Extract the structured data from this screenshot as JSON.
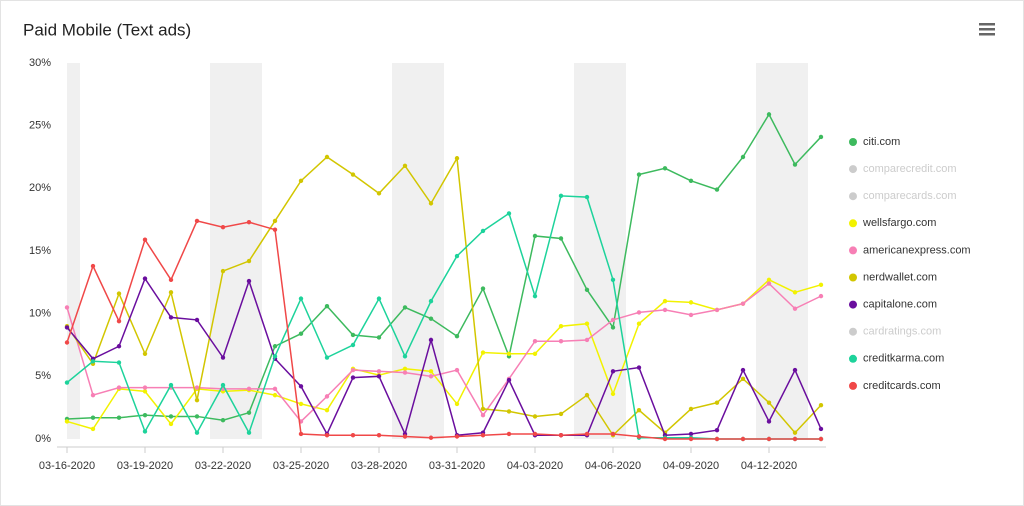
{
  "chart_data": {
    "type": "line",
    "title": "Paid Mobile (Text ads)",
    "categories": [
      "03-16-2020",
      null,
      null,
      "03-19-2020",
      null,
      null,
      "03-22-2020",
      null,
      null,
      "03-25-2020",
      null,
      null,
      "03-28-2020",
      null,
      null,
      "03-31-2020",
      null,
      null,
      "04-03-2020",
      null,
      null,
      "04-06-2020",
      null,
      null,
      "04-09-2020",
      null,
      null,
      "04-12-2020",
      null,
      null
    ],
    "ylim": [
      0,
      30
    ],
    "yticks": [
      {
        "value": 0,
        "label": "0%"
      },
      {
        "value": 5,
        "label": "5%"
      },
      {
        "value": 10,
        "label": "10%"
      },
      {
        "value": 15,
        "label": "15%"
      },
      {
        "value": 20,
        "label": "20%"
      },
      {
        "value": 25,
        "label": "25%"
      },
      {
        "value": 30,
        "label": "30%"
      }
    ],
    "legend": "right",
    "series": [
      {
        "name": "citi.com",
        "color": "#3dba5e",
        "values": [
          1.6,
          1.7,
          1.7,
          1.9,
          1.8,
          1.8,
          1.5,
          2.1,
          7.4,
          8.4,
          10.6,
          8.3,
          8.1,
          10.5,
          9.6,
          8.2,
          12.0,
          6.6,
          16.2,
          16.0,
          11.9,
          8.9,
          21.1,
          21.6,
          20.6,
          19.9,
          22.5,
          25.9,
          21.9,
          24.1
        ]
      },
      {
        "name": "comparecredit.com",
        "color": "#5b8db0",
        "visible": false
      },
      {
        "name": "comparecards.com",
        "color": "#f5a623",
        "visible": false
      },
      {
        "name": "wellsfargo.com",
        "color": "#f2f200",
        "values": [
          1.4,
          0.8,
          4.0,
          3.8,
          1.2,
          4.0,
          3.8,
          3.9,
          3.5,
          2.8,
          2.3,
          5.6,
          5.1,
          5.6,
          5.4,
          2.8,
          6.9,
          6.8,
          6.8,
          9.0,
          9.2,
          3.6,
          9.2,
          11.0,
          10.9,
          10.3,
          10.8,
          12.7,
          11.7,
          12.3
        ]
      },
      {
        "name": "americanexpress.com",
        "color": "#f77fb5",
        "values": [
          10.5,
          3.5,
          4.1,
          4.1,
          4.1,
          4.1,
          4.0,
          4.0,
          4.0,
          1.4,
          3.4,
          5.5,
          5.4,
          5.3,
          5.0,
          5.5,
          1.9,
          4.8,
          7.8,
          7.8,
          7.9,
          9.5,
          10.1,
          10.3,
          9.9,
          10.3,
          10.8,
          12.4,
          10.4,
          11.4
        ]
      },
      {
        "name": "nerdwallet.com",
        "color": "#d2c600",
        "values": [
          9.0,
          6.0,
          11.6,
          6.8,
          11.7,
          3.1,
          13.4,
          14.2,
          17.4,
          20.6,
          22.5,
          21.1,
          19.6,
          21.8,
          18.8,
          22.4,
          2.4,
          2.2,
          1.8,
          2.0,
          3.5,
          0.3,
          2.3,
          0.5,
          2.4,
          2.9,
          4.8,
          2.9,
          0.5,
          2.7
        ]
      },
      {
        "name": "capitalone.com",
        "color": "#6a0e9e",
        "values": [
          8.9,
          6.4,
          7.4,
          12.8,
          9.7,
          9.5,
          6.5,
          12.6,
          6.4,
          4.2,
          0.4,
          4.9,
          5.0,
          0.4,
          7.9,
          0.3,
          0.5,
          4.7,
          0.3,
          0.3,
          0.3,
          5.4,
          5.7,
          0.3,
          0.4,
          0.7,
          5.5,
          1.4,
          5.5,
          0.8
        ]
      },
      {
        "name": "cardratings.com",
        "color": "#f4a582",
        "visible": false
      },
      {
        "name": "creditkarma.com",
        "color": "#1dd39b",
        "values": [
          4.5,
          6.2,
          6.1,
          0.6,
          4.3,
          0.5,
          4.3,
          0.5,
          6.6,
          11.2,
          6.5,
          7.5,
          11.2,
          6.6,
          11.0,
          14.6,
          16.6,
          18.0,
          11.4,
          19.4,
          19.3,
          12.7,
          0.1,
          0.1,
          0.1,
          0.0,
          0.0,
          0.0,
          0.0,
          0.0
        ]
      },
      {
        "name": "creditcards.com",
        "color": "#f04848",
        "values": [
          7.7,
          13.8,
          9.4,
          15.9,
          12.7,
          17.4,
          16.9,
          17.3,
          16.7,
          0.4,
          0.3,
          0.3,
          0.3,
          0.2,
          0.1,
          0.2,
          0.3,
          0.4,
          0.4,
          0.3,
          0.4,
          0.4,
          0.2,
          0.0,
          0.0,
          0.0,
          0.0,
          0.0,
          0.0,
          0.0
        ]
      }
    ]
  }
}
